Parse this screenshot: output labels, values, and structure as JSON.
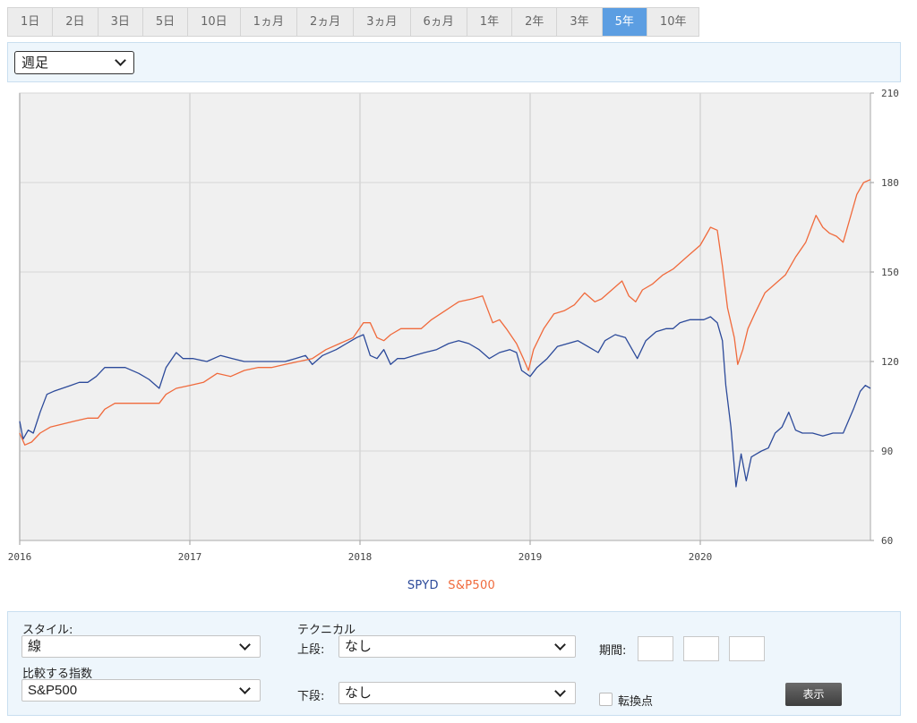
{
  "periods": [
    "1日",
    "2日",
    "3日",
    "5日",
    "10日",
    "1ヵ月",
    "2ヵ月",
    "3ヵ月",
    "6ヵ月",
    "1年",
    "2年",
    "3年",
    "5年",
    "10年"
  ],
  "active_period": "5年",
  "frequency": "週足",
  "panel": {
    "style_label": "スタイル:",
    "style_value": "線",
    "compare_label": "比較する指数",
    "compare_value": "S&P500",
    "technical_label": "テクニカル",
    "upper_label": "上段:",
    "upper_value": "なし",
    "lower_label": "下段:",
    "lower_value": "なし",
    "period_label": "期間:",
    "pivot_label": "転換点",
    "show_button": "表示"
  },
  "colors": {
    "spyd": "#2c4a9a",
    "sp500": "#f06a3c",
    "plot_bg": "#f0f0f0",
    "grid": "#d6d6d6"
  },
  "chart_data": {
    "type": "line",
    "title": "",
    "xlabel": "",
    "ylabel": "",
    "x_ticks": [
      "2016",
      "2017",
      "2018",
      "2019",
      "2020"
    ],
    "y_ticks": [
      60,
      90,
      120,
      150,
      180,
      210
    ],
    "xlim": [
      2016.0,
      2021.0
    ],
    "ylim": [
      60,
      210
    ],
    "y_axis_side": "right",
    "legend_position": "bottom-center",
    "grid": true,
    "series": [
      {
        "name": "SPYD",
        "points": [
          [
            2016.0,
            100
          ],
          [
            2016.02,
            94
          ],
          [
            2016.05,
            97
          ],
          [
            2016.08,
            96
          ],
          [
            2016.12,
            103
          ],
          [
            2016.16,
            109
          ],
          [
            2016.2,
            110
          ],
          [
            2016.25,
            111
          ],
          [
            2016.3,
            112
          ],
          [
            2016.35,
            113
          ],
          [
            2016.4,
            113
          ],
          [
            2016.45,
            115
          ],
          [
            2016.5,
            118
          ],
          [
            2016.55,
            118
          ],
          [
            2016.62,
            118
          ],
          [
            2016.7,
            116
          ],
          [
            2016.76,
            114
          ],
          [
            2016.82,
            111
          ],
          [
            2016.86,
            118
          ],
          [
            2016.92,
            123
          ],
          [
            2016.96,
            121
          ],
          [
            2017.02,
            121
          ],
          [
            2017.1,
            120
          ],
          [
            2017.18,
            122
          ],
          [
            2017.25,
            121
          ],
          [
            2017.32,
            120
          ],
          [
            2017.42,
            120
          ],
          [
            2017.5,
            120
          ],
          [
            2017.56,
            120
          ],
          [
            2017.62,
            121
          ],
          [
            2017.68,
            122
          ],
          [
            2017.72,
            119
          ],
          [
            2017.78,
            122
          ],
          [
            2017.86,
            124
          ],
          [
            2017.92,
            126
          ],
          [
            2017.98,
            128
          ],
          [
            2018.02,
            129
          ],
          [
            2018.06,
            122
          ],
          [
            2018.1,
            121
          ],
          [
            2018.14,
            124
          ],
          [
            2018.18,
            119
          ],
          [
            2018.22,
            121
          ],
          [
            2018.26,
            121
          ],
          [
            2018.32,
            122
          ],
          [
            2018.38,
            123
          ],
          [
            2018.45,
            124
          ],
          [
            2018.52,
            126
          ],
          [
            2018.58,
            127
          ],
          [
            2018.64,
            126
          ],
          [
            2018.7,
            124
          ],
          [
            2018.76,
            121
          ],
          [
            2018.82,
            123
          ],
          [
            2018.88,
            124
          ],
          [
            2018.92,
            123
          ],
          [
            2018.95,
            117
          ],
          [
            2019.0,
            115
          ],
          [
            2019.04,
            118
          ],
          [
            2019.1,
            121
          ],
          [
            2019.16,
            125
          ],
          [
            2019.22,
            126
          ],
          [
            2019.28,
            127
          ],
          [
            2019.34,
            125
          ],
          [
            2019.4,
            123
          ],
          [
            2019.44,
            127
          ],
          [
            2019.5,
            129
          ],
          [
            2019.56,
            128
          ],
          [
            2019.6,
            124
          ],
          [
            2019.63,
            121
          ],
          [
            2019.68,
            127
          ],
          [
            2019.74,
            130
          ],
          [
            2019.8,
            131
          ],
          [
            2019.84,
            131
          ],
          [
            2019.88,
            133
          ],
          [
            2019.94,
            134
          ],
          [
            2019.98,
            134
          ],
          [
            2020.02,
            134
          ],
          [
            2020.06,
            135
          ],
          [
            2020.1,
            133
          ],
          [
            2020.13,
            127
          ],
          [
            2020.15,
            112
          ],
          [
            2020.18,
            98
          ],
          [
            2020.21,
            78
          ],
          [
            2020.24,
            89
          ],
          [
            2020.27,
            80
          ],
          [
            2020.3,
            88
          ],
          [
            2020.33,
            89
          ],
          [
            2020.36,
            90
          ],
          [
            2020.4,
            91
          ],
          [
            2020.44,
            96
          ],
          [
            2020.48,
            98
          ],
          [
            2020.52,
            103
          ],
          [
            2020.56,
            97
          ],
          [
            2020.6,
            96
          ],
          [
            2020.66,
            96
          ],
          [
            2020.72,
            95
          ],
          [
            2020.78,
            96
          ],
          [
            2020.84,
            96
          ],
          [
            2020.9,
            104
          ],
          [
            2020.94,
            110
          ],
          [
            2020.97,
            112
          ],
          [
            2021.0,
            111
          ]
        ]
      },
      {
        "name": "S&P500",
        "points": [
          [
            2016.0,
            96
          ],
          [
            2016.03,
            92
          ],
          [
            2016.07,
            93
          ],
          [
            2016.12,
            96
          ],
          [
            2016.18,
            98
          ],
          [
            2016.25,
            99
          ],
          [
            2016.32,
            100
          ],
          [
            2016.4,
            101
          ],
          [
            2016.46,
            101
          ],
          [
            2016.5,
            104
          ],
          [
            2016.56,
            106
          ],
          [
            2016.62,
            106
          ],
          [
            2016.7,
            106
          ],
          [
            2016.76,
            106
          ],
          [
            2016.82,
            106
          ],
          [
            2016.86,
            109
          ],
          [
            2016.92,
            111
          ],
          [
            2017.0,
            112
          ],
          [
            2017.08,
            113
          ],
          [
            2017.16,
            116
          ],
          [
            2017.24,
            115
          ],
          [
            2017.32,
            117
          ],
          [
            2017.4,
            118
          ],
          [
            2017.48,
            118
          ],
          [
            2017.56,
            119
          ],
          [
            2017.64,
            120
          ],
          [
            2017.72,
            121
          ],
          [
            2017.8,
            124
          ],
          [
            2017.88,
            126
          ],
          [
            2017.96,
            128
          ],
          [
            2018.02,
            133
          ],
          [
            2018.06,
            133
          ],
          [
            2018.1,
            128
          ],
          [
            2018.14,
            127
          ],
          [
            2018.18,
            129
          ],
          [
            2018.24,
            131
          ],
          [
            2018.3,
            131
          ],
          [
            2018.36,
            131
          ],
          [
            2018.42,
            134
          ],
          [
            2018.5,
            137
          ],
          [
            2018.58,
            140
          ],
          [
            2018.66,
            141
          ],
          [
            2018.72,
            142
          ],
          [
            2018.78,
            133
          ],
          [
            2018.82,
            134
          ],
          [
            2018.86,
            131
          ],
          [
            2018.92,
            126
          ],
          [
            2018.96,
            121
          ],
          [
            2018.99,
            117
          ],
          [
            2019.02,
            124
          ],
          [
            2019.08,
            131
          ],
          [
            2019.14,
            136
          ],
          [
            2019.2,
            137
          ],
          [
            2019.26,
            139
          ],
          [
            2019.32,
            143
          ],
          [
            2019.38,
            140
          ],
          [
            2019.42,
            141
          ],
          [
            2019.48,
            144
          ],
          [
            2019.54,
            147
          ],
          [
            2019.58,
            142
          ],
          [
            2019.62,
            140
          ],
          [
            2019.66,
            144
          ],
          [
            2019.72,
            146
          ],
          [
            2019.78,
            149
          ],
          [
            2019.84,
            151
          ],
          [
            2019.92,
            155
          ],
          [
            2020.0,
            159
          ],
          [
            2020.06,
            165
          ],
          [
            2020.1,
            164
          ],
          [
            2020.13,
            152
          ],
          [
            2020.16,
            138
          ],
          [
            2020.2,
            128
          ],
          [
            2020.22,
            119
          ],
          [
            2020.25,
            124
          ],
          [
            2020.28,
            131
          ],
          [
            2020.32,
            136
          ],
          [
            2020.38,
            143
          ],
          [
            2020.44,
            146
          ],
          [
            2020.5,
            149
          ],
          [
            2020.56,
            155
          ],
          [
            2020.62,
            160
          ],
          [
            2020.68,
            169
          ],
          [
            2020.72,
            165
          ],
          [
            2020.76,
            163
          ],
          [
            2020.8,
            162
          ],
          [
            2020.84,
            160
          ],
          [
            2020.88,
            168
          ],
          [
            2020.92,
            176
          ],
          [
            2020.96,
            180
          ],
          [
            2021.0,
            181
          ]
        ]
      }
    ]
  }
}
